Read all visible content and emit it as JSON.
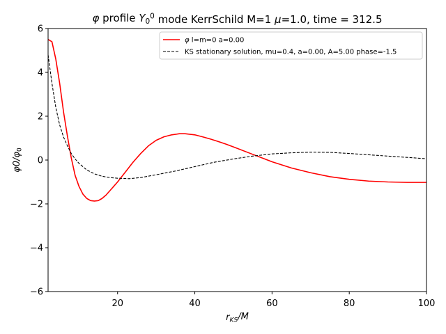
{
  "chart_data": {
    "type": "line",
    "title": {
      "parts": [
        {
          "t": "φ",
          "style": "italic"
        },
        {
          "t": " profile "
        },
        {
          "t": "Y",
          "style": "italic"
        },
        {
          "t": "0",
          "pos": "sub"
        },
        {
          "t": "0",
          "pos": "sup"
        },
        {
          "t": " mode KerrSchild M=1 "
        },
        {
          "t": "μ",
          "style": "italic"
        },
        {
          "t": "=1.0, time = 312.5"
        }
      ]
    },
    "xlabel": {
      "parts": [
        {
          "t": "r",
          "style": "italic"
        },
        {
          "t": "KS",
          "style": "italic",
          "pos": "sub"
        },
        {
          "t": "/",
          "style": "italic"
        },
        {
          "t": "M",
          "style": "italic"
        }
      ]
    },
    "ylabel": {
      "parts": [
        {
          "t": "φ",
          "style": "italic"
        },
        {
          "t": "0/",
          "style": "italic"
        },
        {
          "t": "φ",
          "style": "italic"
        },
        {
          "t": "0",
          "pos": "sub"
        }
      ]
    },
    "xlim": [
      2,
      100
    ],
    "ylim": [
      -6,
      6
    ],
    "xticks": [
      20,
      40,
      60,
      80,
      100
    ],
    "yticks": [
      -6,
      -4,
      -2,
      0,
      2,
      4,
      6
    ],
    "grid": false,
    "legend_position": "top-right",
    "series": [
      {
        "name": "φ l=m=0 a=0.00",
        "legend_parts": [
          {
            "t": "φ",
            "style": "italic"
          },
          {
            "t": " l=m=0 a=0.00"
          }
        ],
        "color": "#ff0000",
        "dash": "solid",
        "x": [
          2,
          3,
          4,
          5,
          6,
          7,
          8,
          9,
          10,
          11,
          12,
          13,
          14,
          15,
          16,
          17,
          18,
          19,
          20,
          22,
          24,
          26,
          28,
          30,
          32,
          34,
          36,
          37.5,
          40,
          42,
          44,
          46,
          48,
          50,
          55,
          60,
          65,
          70,
          75,
          80,
          85,
          90,
          95,
          100
        ],
        "y": [
          5.5,
          5.4,
          4.6,
          3.5,
          2.2,
          1.1,
          0.1,
          -0.7,
          -1.2,
          -1.55,
          -1.75,
          -1.85,
          -1.87,
          -1.85,
          -1.75,
          -1.6,
          -1.4,
          -1.2,
          -1.0,
          -0.55,
          -0.1,
          0.3,
          0.65,
          0.9,
          1.06,
          1.15,
          1.2,
          1.2,
          1.15,
          1.06,
          0.96,
          0.85,
          0.73,
          0.6,
          0.26,
          -0.08,
          -0.36,
          -0.58,
          -0.76,
          -0.88,
          -0.96,
          -1.0,
          -1.02,
          -1.02
        ]
      },
      {
        "name": "KS stationary solution, mu=0.4, a=0.00, A=5.00 phase=-1.5",
        "legend_parts": [
          {
            "t": "KS stationary solution, mu=0.4, a=0.00, A=5.00 phase=-1.5"
          }
        ],
        "color": "#000000",
        "dash": "dashed",
        "x": [
          2,
          3,
          4,
          5,
          6,
          7,
          8,
          9,
          10,
          12,
          14,
          16,
          18,
          20,
          23,
          26,
          30,
          35,
          40,
          45,
          50,
          55,
          60,
          65,
          70,
          75,
          80,
          85,
          90,
          95,
          100
        ],
        "y": [
          4.8,
          3.5,
          2.4,
          1.6,
          1.05,
          0.65,
          0.3,
          0.05,
          -0.15,
          -0.45,
          -0.63,
          -0.74,
          -0.8,
          -0.83,
          -0.85,
          -0.8,
          -0.67,
          -0.5,
          -0.3,
          -0.1,
          0.05,
          0.18,
          0.28,
          0.33,
          0.36,
          0.35,
          0.3,
          0.24,
          0.18,
          0.12,
          0.06
        ]
      }
    ]
  }
}
